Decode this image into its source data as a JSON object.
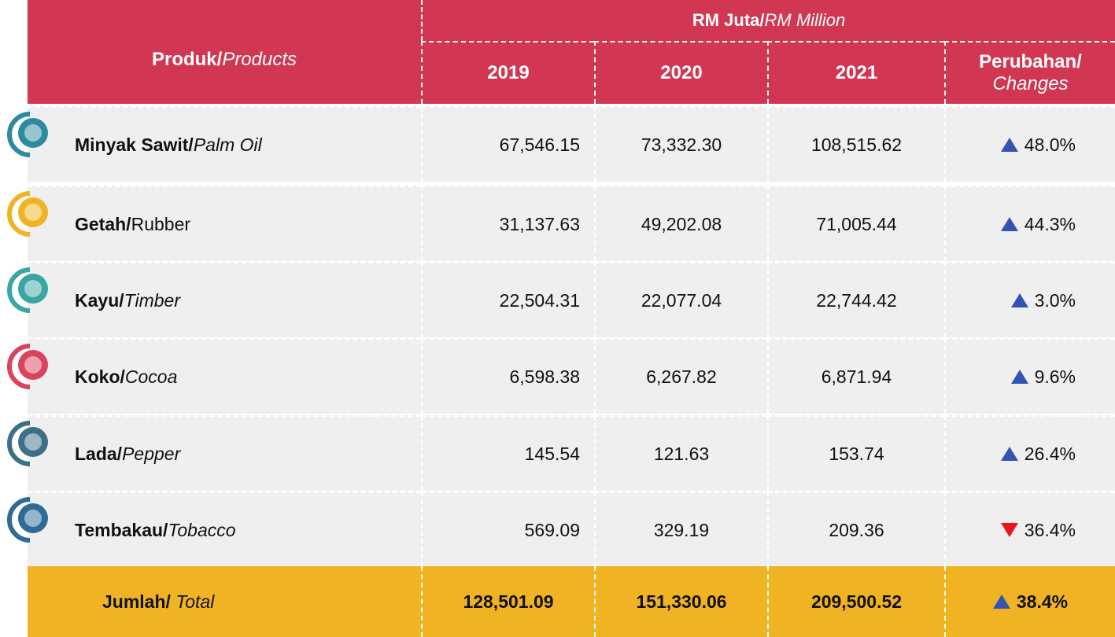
{
  "header": {
    "product_ms": "Produk/",
    "product_en": "Products",
    "unit_ms": "RM Juta/",
    "unit_en": "RM Million",
    "years": [
      "2019",
      "2020",
      "2021"
    ],
    "change_ms": "Perubahan/",
    "change_en": "Changes"
  },
  "rows": [
    {
      "name_ms": "Minyak Sawit/",
      "name_en": "Palm Oil",
      "values": [
        "67,546.15",
        "73,332.30",
        "108,515.62"
      ],
      "change": "48.0%",
      "direction": "up",
      "icon_color": "#2e8aa0"
    },
    {
      "name_ms": "Getah/",
      "name_en": "Rubber",
      "values": [
        "31,137.63",
        "49,202.08",
        "71,005.44"
      ],
      "change": "44.3%",
      "direction": "up",
      "icon_color": "#f0b323"
    },
    {
      "name_ms": "Kayu/",
      "name_en": "Timber",
      "values": [
        "22,504.31",
        "22,077.04",
        "22,744.42"
      ],
      "change": "3.0%",
      "direction": "up",
      "icon_color": "#3aa6a3"
    },
    {
      "name_ms": "Koko/",
      "name_en": "Cocoa",
      "values": [
        "6,598.38",
        "6,267.82",
        "6,871.94"
      ],
      "change": "9.6%",
      "direction": "up",
      "icon_color": "#d9435e"
    },
    {
      "name_ms": "Lada/",
      "name_en": "Pepper",
      "values": [
        "145.54",
        "121.63",
        "153.74"
      ],
      "change": "26.4%",
      "direction": "up",
      "icon_color": "#3e6f88"
    },
    {
      "name_ms": "Tembakau/",
      "name_en": "Tobacco",
      "values": [
        "569.09",
        "329.19",
        "209.36"
      ],
      "change": "36.4%",
      "direction": "down",
      "icon_color": "#2f6b95"
    }
  ],
  "total": {
    "name_ms": "Jumlah/",
    "name_en": "Total",
    "values": [
      "128,501.09",
      "151,330.06",
      "209,500.52"
    ],
    "change": "38.4%",
    "direction": "up"
  }
}
